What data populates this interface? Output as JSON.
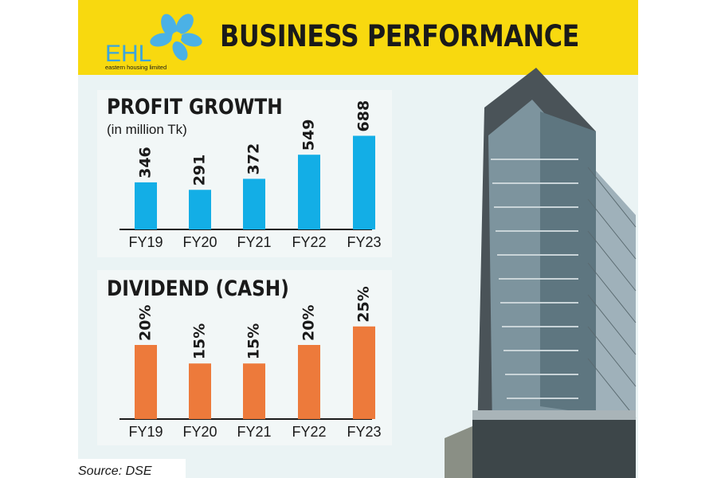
{
  "header": {
    "logo_text": "EHL",
    "logo_tagline": "eastern housing limited",
    "title": "BUSINESS PERFORMANCE"
  },
  "chart_data": [
    {
      "type": "bar",
      "title": "PROFIT GROWTH",
      "subtitle": "(in million Tk)",
      "categories": [
        "FY19",
        "FY20",
        "FY21",
        "FY22",
        "FY23"
      ],
      "values": [
        346,
        291,
        372,
        549,
        688
      ],
      "value_labels": [
        "346",
        "291",
        "372",
        "549",
        "688"
      ],
      "ylim": [
        0,
        720
      ],
      "color": "#13aee6"
    },
    {
      "type": "bar",
      "title": "DIVIDEND (CASH)",
      "categories": [
        "FY19",
        "FY20",
        "FY21",
        "FY22",
        "FY23"
      ],
      "values": [
        20,
        15,
        15,
        20,
        25
      ],
      "value_labels": [
        "20%",
        "15%",
        "15%",
        "20%",
        "25%"
      ],
      "ylim": [
        0,
        40
      ],
      "color": "#ed7a3b"
    }
  ],
  "source": "Source: DSE",
  "colors": {
    "header": "#f8d90f",
    "profit_bar": "#13aee6",
    "dividend_bar": "#ed7a3b"
  }
}
